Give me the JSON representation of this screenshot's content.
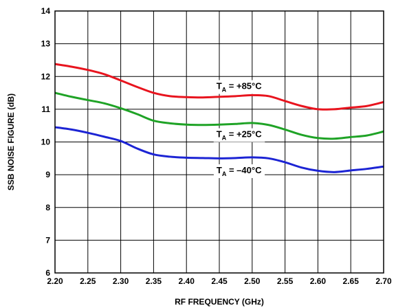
{
  "chart_data": {
    "type": "line",
    "xlabel": "RF FREQUENCY (GHz)",
    "ylabel": "SSB NOISE FIGURE (dB)",
    "xlim": [
      2.2,
      2.7
    ],
    "ylim": [
      6,
      14
    ],
    "grid": true,
    "x_ticks": [
      "2.20",
      "2.25",
      "2.30",
      "2.35",
      "2.40",
      "2.45",
      "2.50",
      "2.55",
      "2.60",
      "2.65",
      "2.70"
    ],
    "y_ticks": [
      "6",
      "7",
      "8",
      "9",
      "10",
      "11",
      "12",
      "13",
      "14"
    ],
    "x": [
      2.2,
      2.225,
      2.25,
      2.275,
      2.3,
      2.325,
      2.35,
      2.375,
      2.4,
      2.425,
      2.45,
      2.475,
      2.5,
      2.525,
      2.55,
      2.575,
      2.6,
      2.625,
      2.65,
      2.675,
      2.7
    ],
    "series": [
      {
        "color": "#e8141e",
        "values": [
          12.38,
          12.3,
          12.2,
          12.07,
          11.88,
          11.68,
          11.5,
          11.4,
          11.37,
          11.36,
          11.38,
          11.4,
          11.43,
          11.4,
          11.25,
          11.1,
          11.0,
          11.0,
          11.05,
          11.1,
          11.22
        ]
      },
      {
        "color": "#1fa326",
        "values": [
          11.5,
          11.38,
          11.28,
          11.18,
          11.03,
          10.85,
          10.65,
          10.57,
          10.53,
          10.52,
          10.53,
          10.55,
          10.58,
          10.52,
          10.38,
          10.22,
          10.12,
          10.1,
          10.15,
          10.2,
          10.32
        ]
      },
      {
        "color": "#1c24d4",
        "values": [
          10.45,
          10.38,
          10.28,
          10.16,
          10.03,
          9.8,
          9.62,
          9.55,
          9.52,
          9.51,
          9.5,
          9.51,
          9.53,
          9.5,
          9.38,
          9.22,
          9.12,
          9.08,
          9.13,
          9.18,
          9.25
        ]
      }
    ],
    "annotations": [
      {
        "main": "T",
        "sub": "A",
        "rest": " = +85°C",
        "x": 2.48,
        "y": 11.72
      },
      {
        "main": "T",
        "sub": "A",
        "rest": " = +25°C",
        "x": 2.48,
        "y": 10.25
      },
      {
        "main": "T",
        "sub": "A",
        "rest": " = –40°C",
        "x": 2.48,
        "y": 9.15
      }
    ]
  }
}
